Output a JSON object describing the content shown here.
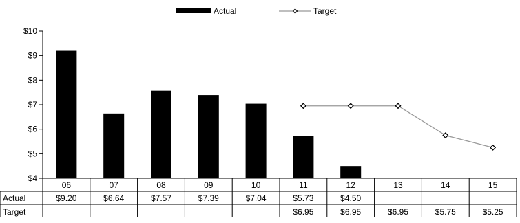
{
  "chart_data": {
    "type": "bar",
    "title": "",
    "xlabel": "",
    "ylabel": "",
    "ylim": [
      4,
      10
    ],
    "y_ticks": [
      "$4",
      "$5",
      "$6",
      "$7",
      "$8",
      "$9",
      "$10"
    ],
    "y_tick_values": [
      4,
      5,
      6,
      7,
      8,
      9,
      10
    ],
    "grid": false,
    "legend_position": "top-center",
    "categories": [
      "06",
      "07",
      "08",
      "09",
      "10",
      "11",
      "12",
      "13",
      "14",
      "15"
    ],
    "series": [
      {
        "name": "Actual",
        "kind": "bar",
        "color": "#000000",
        "values": [
          9.2,
          6.64,
          7.57,
          7.39,
          7.04,
          5.73,
          4.5,
          null,
          null,
          null
        ],
        "labels": [
          "$9.20",
          "$6.64",
          "$7.57",
          "$7.39",
          "$7.04",
          "$5.73",
          "$4.50",
          "",
          "",
          ""
        ]
      },
      {
        "name": "Target",
        "kind": "line",
        "color": "#999999",
        "marker": "diamond",
        "values": [
          null,
          null,
          null,
          null,
          null,
          6.95,
          6.95,
          6.95,
          5.75,
          5.25
        ],
        "labels": [
          "",
          "",
          "",
          "",
          "",
          "$6.95",
          "$6.95",
          "$6.95",
          "$5.75",
          "$5.25"
        ]
      }
    ]
  }
}
